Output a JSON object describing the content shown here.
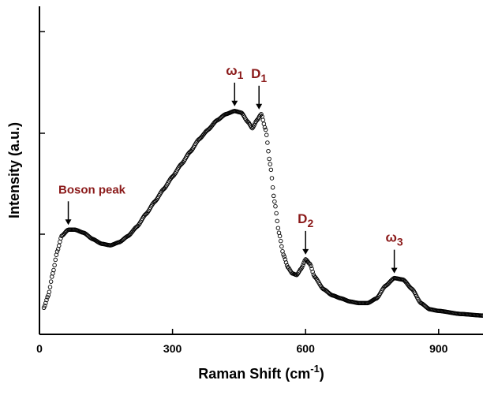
{
  "chart_data": {
    "type": "scatter",
    "xlabel": "Raman Shift (cm",
    "xlabel_superscript": "-1",
    "xlabel_suffix": ")",
    "ylabel": "Intensity (a.u.)",
    "xlim": [
      0,
      1000
    ],
    "ylim": [
      0,
      1.0
    ],
    "x_ticks": [
      0,
      300,
      600,
      900
    ],
    "x_tick_labels": [
      "0",
      "300",
      "600",
      "900"
    ],
    "y_ticks": [
      0.0,
      0.25,
      0.5,
      0.75,
      1.0
    ],
    "y_tick_labels_shown": false,
    "grid": false,
    "marker": "open-circle",
    "marker_color": "#000000",
    "annotation_color": "#8b1a1a",
    "profile_points": [
      [
        10,
        0.07
      ],
      [
        20,
        0.11
      ],
      [
        30,
        0.18
      ],
      [
        40,
        0.25
      ],
      [
        50,
        0.3
      ],
      [
        65,
        0.32
      ],
      [
        80,
        0.32
      ],
      [
        100,
        0.31
      ],
      [
        120,
        0.29
      ],
      [
        140,
        0.275
      ],
      [
        160,
        0.27
      ],
      [
        180,
        0.28
      ],
      [
        200,
        0.3
      ],
      [
        220,
        0.33
      ],
      [
        240,
        0.37
      ],
      [
        260,
        0.41
      ],
      [
        280,
        0.45
      ],
      [
        300,
        0.49
      ],
      [
        320,
        0.53
      ],
      [
        340,
        0.57
      ],
      [
        360,
        0.61
      ],
      [
        380,
        0.64
      ],
      [
        400,
        0.67
      ],
      [
        420,
        0.69
      ],
      [
        440,
        0.7
      ],
      [
        455,
        0.695
      ],
      [
        470,
        0.665
      ],
      [
        480,
        0.645
      ],
      [
        490,
        0.67
      ],
      [
        500,
        0.69
      ],
      [
        510,
        0.64
      ],
      [
        520,
        0.53
      ],
      [
        530,
        0.41
      ],
      [
        540,
        0.31
      ],
      [
        550,
        0.24
      ],
      [
        560,
        0.2
      ],
      [
        570,
        0.18
      ],
      [
        580,
        0.175
      ],
      [
        590,
        0.195
      ],
      [
        600,
        0.225
      ],
      [
        610,
        0.21
      ],
      [
        620,
        0.17
      ],
      [
        640,
        0.13
      ],
      [
        660,
        0.11
      ],
      [
        680,
        0.1
      ],
      [
        700,
        0.09
      ],
      [
        720,
        0.085
      ],
      [
        740,
        0.085
      ],
      [
        760,
        0.1
      ],
      [
        780,
        0.14
      ],
      [
        800,
        0.165
      ],
      [
        820,
        0.16
      ],
      [
        840,
        0.13
      ],
      [
        860,
        0.085
      ],
      [
        880,
        0.065
      ],
      [
        900,
        0.06
      ],
      [
        950,
        0.05
      ],
      [
        1000,
        0.045
      ]
    ],
    "annotations": [
      {
        "label": "Boson peak",
        "sub": "",
        "x": 65,
        "y": 0.32
      },
      {
        "label": "ω",
        "sub": "1",
        "x": 440,
        "y": 0.7
      },
      {
        "label": "D",
        "sub": "1",
        "x": 495,
        "y": 0.69
      },
      {
        "label": "D",
        "sub": "2",
        "x": 600,
        "y": 0.225
      },
      {
        "label": "ω",
        "sub": "3",
        "x": 800,
        "y": 0.165
      }
    ]
  }
}
